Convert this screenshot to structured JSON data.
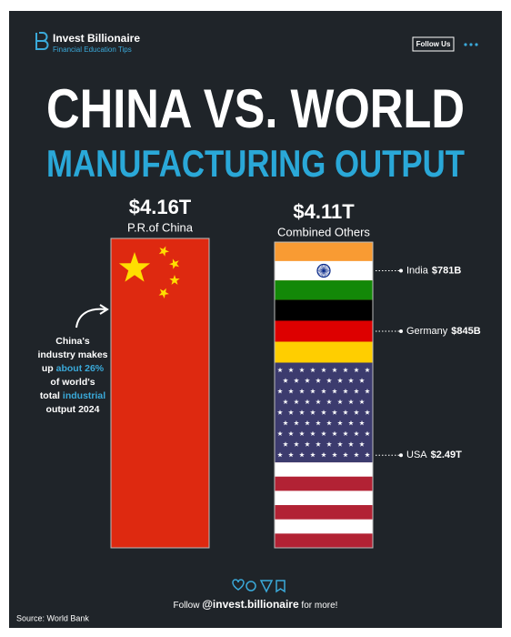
{
  "header": {
    "brand": "Invest Billionaire",
    "tagline": "Financial Education Tips",
    "follow_button": "Follow Us"
  },
  "chart_data": {
    "type": "flag-bar",
    "title": "CHINA VS. WORLD",
    "subtitle": "MANUFACTURING OUTPUT",
    "categories": [
      "P.R.of China",
      "Combined Others"
    ],
    "values": [
      4.16,
      4.11
    ],
    "value_labels": [
      "$4.16T",
      "$4.11T"
    ],
    "flags": [
      {
        "pattern": "china",
        "colors": [
          "#de2910",
          "#ffde00"
        ]
      },
      null
    ],
    "segments": [
      {
        "name": "India",
        "value": 0.781,
        "value_label": "$781B",
        "flag": {
          "pattern": "tricolor",
          "colors": [
            "#f99b33",
            "#ffffff",
            "#138808",
            "#0a2a8a"
          ]
        }
      },
      {
        "name": "Germany",
        "value": 0.845,
        "value_label": "$845B",
        "flag": {
          "pattern": "tricolor",
          "colors": [
            "#000000",
            "#dd0000",
            "#ffce00"
          ]
        }
      },
      {
        "name": "USA",
        "value": 2.49,
        "value_label": "$2.49T",
        "flag": {
          "pattern": "stars-and-stripes",
          "colors": [
            "#b22234",
            "#ffffff",
            "#3c3b6e"
          ]
        }
      }
    ],
    "annotation": [
      [
        "China's"
      ],
      [
        "industry makes"
      ],
      [
        "up ",
        {
          "text": "about 26%",
          "color": "#3aa9d9"
        }
      ],
      [
        "of world's"
      ],
      [
        "total ",
        {
          "text": "industrial",
          "color": "#3aa9d9"
        }
      ],
      [
        "output 2024"
      ]
    ]
  },
  "footer": {
    "follow": [
      "Follow ",
      "@invest.billionaire",
      " for more!"
    ],
    "source": "Source: World Bank"
  }
}
